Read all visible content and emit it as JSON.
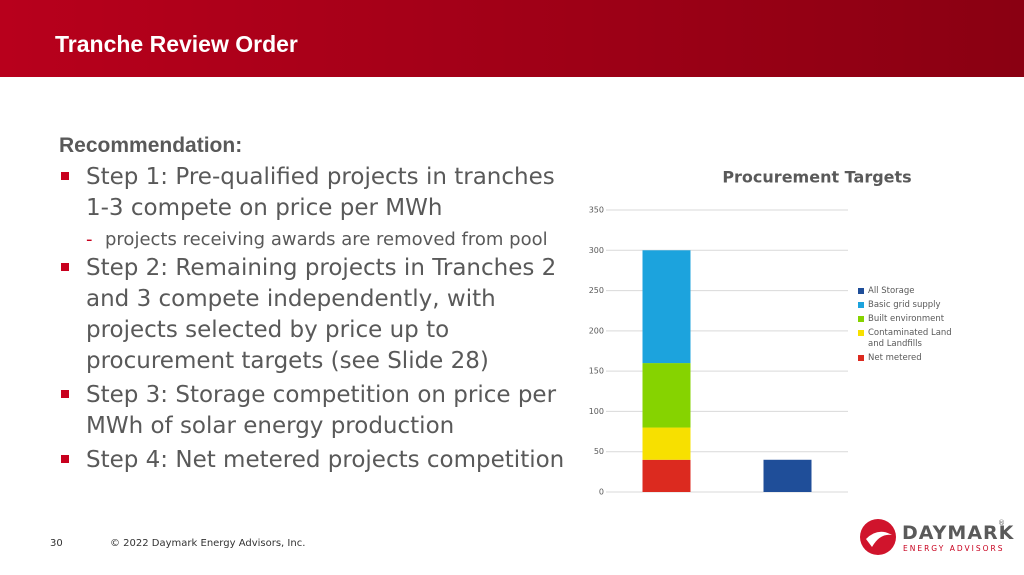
{
  "header": {
    "title": "Tranche Review Order"
  },
  "body": {
    "heading": "Recommendation:",
    "bullets": [
      {
        "text": "Step 1: Pre-qualified projects in tranches 1-3 compete on price per MWh",
        "sub": [
          "projects receiving awards are removed from pool"
        ]
      },
      {
        "text": "Step 2: Remaining projects in Tranches 2 and 3 compete independently, with projects selected by price up to procurement targets (see Slide 28)",
        "sub": []
      },
      {
        "text": "Step 3: Storage competition on price per MWh of solar energy production",
        "sub": []
      },
      {
        "text": "Step 4: Net metered projects competition",
        "sub": []
      }
    ]
  },
  "chart_data": {
    "type": "stacked_bar",
    "title": "Procurement Targets",
    "categories": [
      null,
      null
    ],
    "series": [
      {
        "name": "All Storage",
        "color": "#1f4e99",
        "values": [
          0,
          40
        ]
      },
      {
        "name": "Basic grid supply",
        "color": "#1ca3dd",
        "values": [
          140,
          0
        ]
      },
      {
        "name": "Built environment",
        "color": "#86d300",
        "values": [
          80,
          0
        ]
      },
      {
        "name": "Contaminated Land and Landfills",
        "color": "#f7e000",
        "values": [
          40,
          0
        ]
      },
      {
        "name": "Net metered",
        "color": "#dc2a1f",
        "values": [
          40,
          0
        ]
      }
    ],
    "ylim": [
      0,
      350
    ],
    "yticks": [
      0,
      50,
      100,
      150,
      200,
      250,
      300,
      350
    ],
    "grid": true,
    "legend": "right"
  },
  "footer": {
    "page": "30",
    "copyright": "© 2022 Daymark Energy Advisors, Inc.",
    "logo": {
      "name": "DAYMARK",
      "mark": "®",
      "tagline": "ENERGY ADVISORS"
    }
  }
}
